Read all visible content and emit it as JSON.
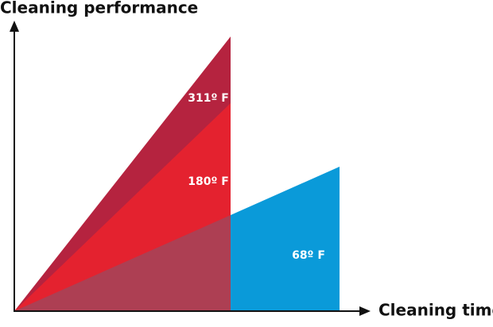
{
  "y_axis_label": "Cleaning performance",
  "x_axis_label": "Cleaning time",
  "regions": [
    {
      "label": "311º F"
    },
    {
      "label": "180º F"
    },
    {
      "label": "68º F"
    }
  ]
}
